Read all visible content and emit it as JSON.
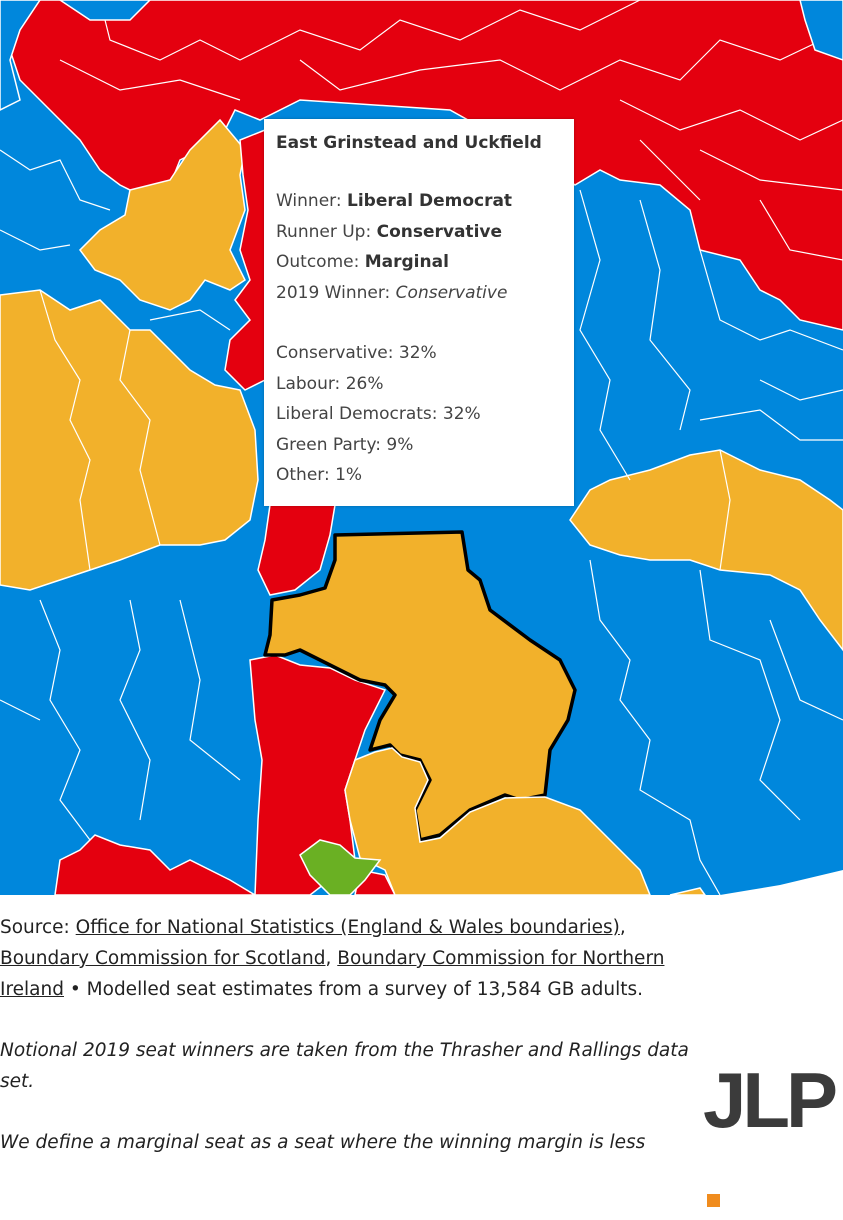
{
  "colors": {
    "conservative": "#0087dc",
    "labour": "#e4000f",
    "liberal_democrat": "#f2b12b",
    "green": "#6ab023",
    "logo_dot": "#f08c1e"
  },
  "tooltip": {
    "title": "East Grinstead and Uckfield",
    "winner_label": "Winner:",
    "winner": "Liberal Democrat",
    "runner_up_label": "Runner Up:",
    "runner_up": "Conservative",
    "outcome_label": "Outcome:",
    "outcome": "Marginal",
    "prev_winner_label": "2019 Winner:",
    "prev_winner": "Conservative",
    "shares": [
      {
        "party": "Conservative:",
        "value": "32%"
      },
      {
        "party": "Labour:",
        "value": "26%"
      },
      {
        "party": "Liberal Democrats:",
        "value": "32%"
      },
      {
        "party": "Green Party:",
        "value": "9%"
      },
      {
        "party": "Other:",
        "value": "1%"
      }
    ]
  },
  "footer": {
    "source_label": "Source:",
    "link_ons": "Office for National Statistics (England & Wales boundaries)",
    "sep1": ",",
    "link_scotland": "Boundary Commission for Scotland",
    "sep2": ",",
    "link_ni": "Boundary Commission for Northern Ireland",
    "survey_text": " • Modelled seat estimates from a survey of 13,584 GB adults.",
    "note_notional": "Notional 2019 seat winners are taken from the Thrasher and Rallings data set.",
    "note_marginal": "We define a marginal seat as a seat where the winning margin is less"
  },
  "logo": {
    "text": "JLP"
  }
}
